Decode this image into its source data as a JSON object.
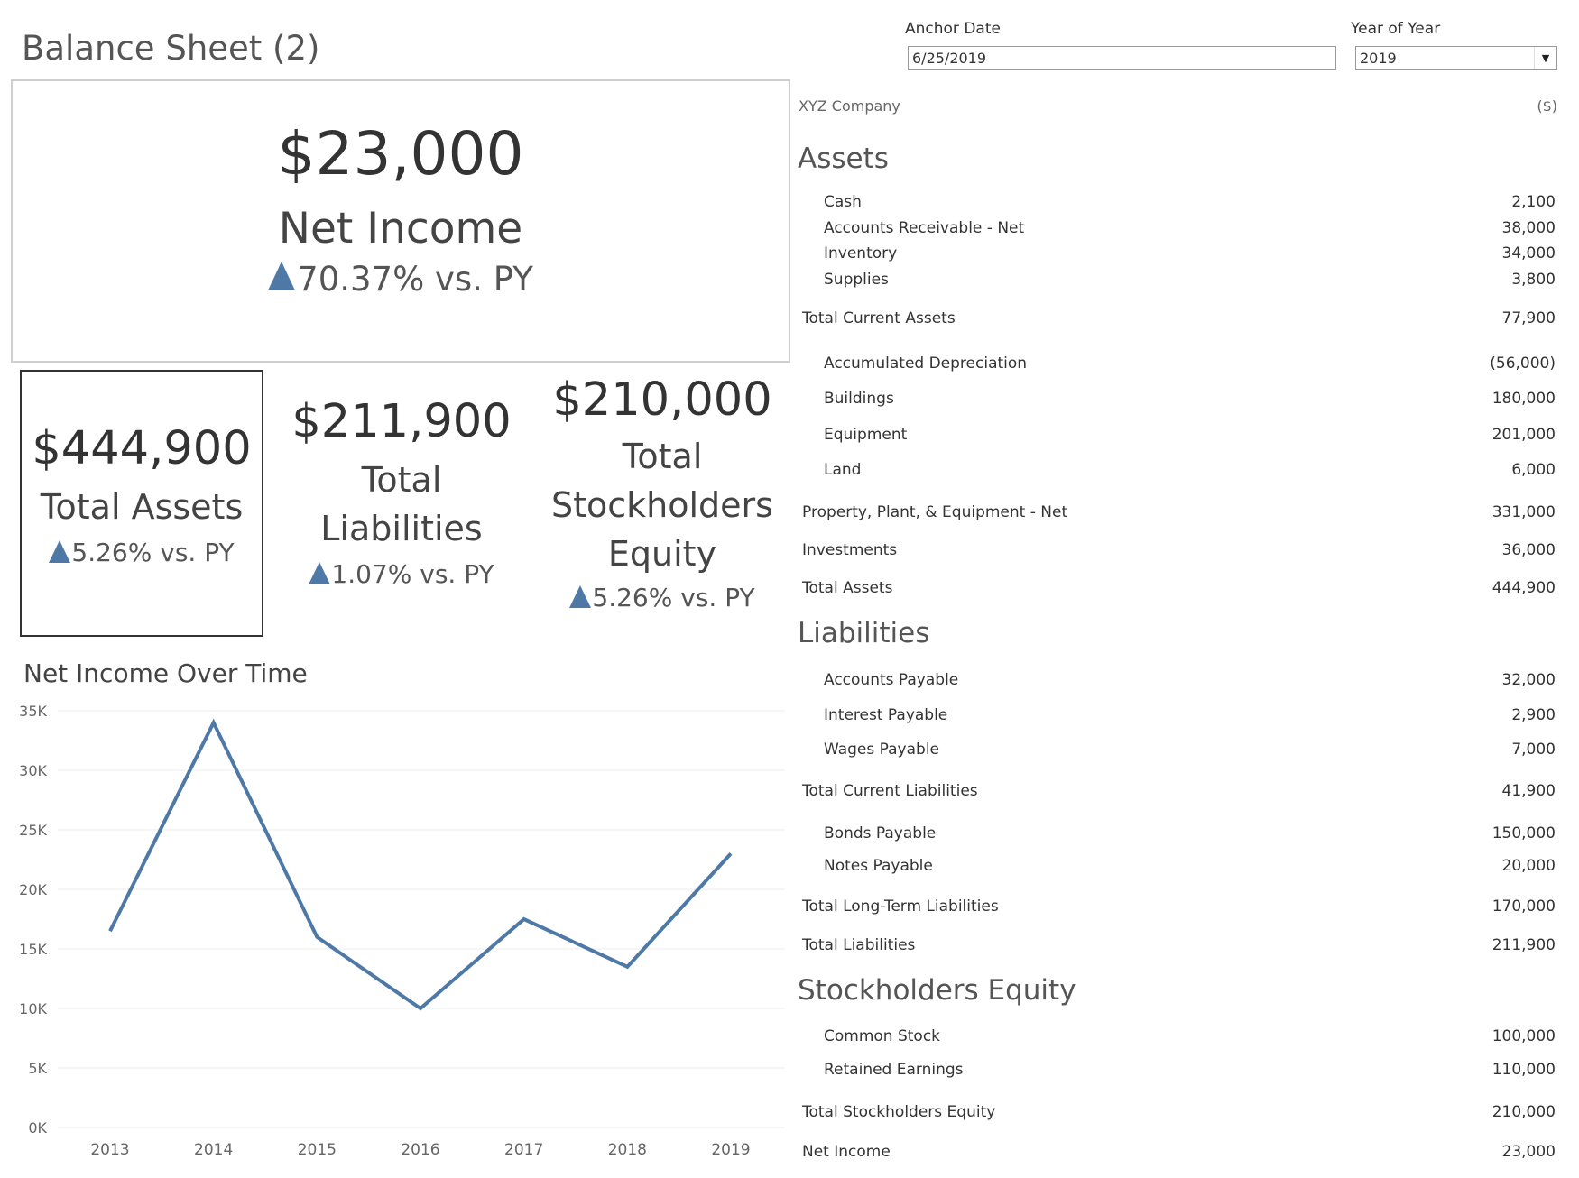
{
  "page_title": "Balance Sheet (2)",
  "filters": {
    "anchor_date_label": "Anchor Date",
    "anchor_date_value": "6/25/2019",
    "year_label": "Year of Year",
    "year_value": "2019"
  },
  "net_income_kpi": {
    "value": "$23,000",
    "label": "Net Income",
    "change": "70.37% vs. PY"
  },
  "kpis": [
    {
      "value": "$444,900",
      "label_lines": [
        "Total Assets"
      ],
      "change": "5.26% vs. PY"
    },
    {
      "value": "$211,900",
      "label_lines": [
        "Total",
        "Liabilities"
      ],
      "change": "1.07% vs. PY"
    },
    {
      "value": "$210,000",
      "label_lines": [
        "Total",
        "Stockholders",
        "Equity"
      ],
      "change": "5.26% vs. PY"
    }
  ],
  "chart_data": {
    "type": "line",
    "title": "Net Income Over Time",
    "x": [
      "2013",
      "2014",
      "2015",
      "2016",
      "2017",
      "2018",
      "2019"
    ],
    "series": [
      {
        "values": [
          16500,
          34000,
          16000,
          10000,
          17500,
          13500,
          23000
        ]
      }
    ],
    "ylim": [
      0,
      35000
    ],
    "yticks": [
      "0K",
      "5K",
      "10K",
      "15K",
      "20K",
      "25K",
      "30K",
      "35K"
    ],
    "grid": true,
    "line_color": "#4e79a7"
  },
  "statement": {
    "company": "XYZ Company",
    "unit": "($)",
    "assets_heading": "Assets",
    "current_assets": [
      {
        "label": "Cash",
        "value": "2,100"
      },
      {
        "label": "Accounts Receivable - Net",
        "value": "38,000"
      },
      {
        "label": "Inventory",
        "value": "34,000"
      },
      {
        "label": "Supplies",
        "value": "3,800"
      }
    ],
    "total_current_assets": {
      "label": "Total Current Assets",
      "value": "77,900"
    },
    "ppe_items": [
      {
        "label": "Accumulated Depreciation",
        "value": "(56,000)"
      },
      {
        "label": "Buildings",
        "value": "180,000"
      },
      {
        "label": "Equipment",
        "value": "201,000"
      },
      {
        "label": "Land",
        "value": "6,000"
      }
    ],
    "ppe_net": {
      "label": "Property, Plant, & Equipment - Net",
      "value": "331,000"
    },
    "investments": {
      "label": "Investments",
      "value": "36,000"
    },
    "total_assets": {
      "label": "Total Assets",
      "value": "444,900"
    },
    "liabilities_heading": "Liabilities",
    "current_liabilities": [
      {
        "label": "Accounts Payable",
        "value": "32,000"
      },
      {
        "label": "Interest Payable",
        "value": "2,900"
      },
      {
        "label": "Wages Payable",
        "value": "7,000"
      }
    ],
    "total_current_liabilities": {
      "label": "Total Current Liabilities",
      "value": "41,900"
    },
    "long_term_liabilities": [
      {
        "label": "Bonds Payable",
        "value": "150,000"
      },
      {
        "label": "Notes Payable",
        "value": "20,000"
      }
    ],
    "total_long_term_liabilities": {
      "label": "Total Long-Term Liabilities",
      "value": "170,000"
    },
    "total_liabilities": {
      "label": "Total Liabilities",
      "value": "211,900"
    },
    "equity_heading": "Stockholders Equity",
    "equity_items": [
      {
        "label": "Common Stock",
        "value": "100,000"
      },
      {
        "label": "Retained Earnings",
        "value": "110,000"
      }
    ],
    "total_equity": {
      "label": "Total Stockholders Equity",
      "value": "210,000"
    },
    "net_income": {
      "label": "Net Income",
      "value": "23,000"
    }
  }
}
